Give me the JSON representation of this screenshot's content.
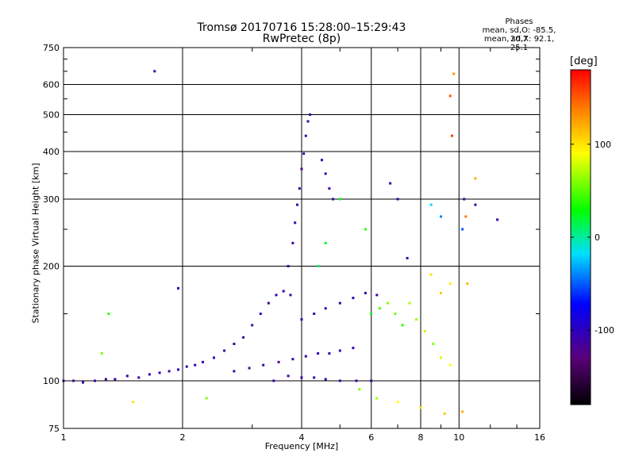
{
  "header": {
    "title": "Tromsø 20170716 15:28:00–15:29:43",
    "subtitle": "RwPretec (8p)",
    "stats_title": "Phases",
    "stats_o": "mean, sd,O: -85.5, 20.7",
    "stats_x": "mean, sd,X:  92.1, 25.1"
  },
  "axes": {
    "xlabel": "Frequency [MHz]",
    "ylabel": "Stationary phase Virtual Height [km]"
  },
  "colorbar": {
    "label": "[deg]",
    "range": [
      -180,
      180
    ],
    "ticks": [
      100,
      0,
      -100
    ],
    "tick_labels": [
      "100",
      "0",
      "-100"
    ]
  },
  "chart_data": {
    "type": "scatter",
    "title": "Tromsø 20170716 15:28:00–15:29:43",
    "subtitle": "RwPretec (8p)",
    "xlabel": "Frequency [MHz]",
    "ylabel": "Stationary phase Virtual Height [km]",
    "x_scale": "log",
    "y_scale": "log",
    "xlim": [
      1,
      16
    ],
    "ylim": [
      75,
      750
    ],
    "x_ticks": [
      1,
      2,
      4,
      6,
      8,
      10,
      16
    ],
    "x_tick_labels": [
      "1",
      "2",
      "4",
      "6",
      "8",
      "10",
      "16"
    ],
    "y_ticks": [
      75,
      100,
      200,
      300,
      400,
      500,
      600,
      750
    ],
    "y_tick_labels": [
      "75",
      "100",
      "200",
      "300",
      "400",
      "500",
      "600",
      "750"
    ],
    "grid": true,
    "color_variable": "phase [deg]",
    "points": [
      [
        1.0,
        100,
        -110
      ],
      [
        1.06,
        100,
        -115
      ],
      [
        1.12,
        99,
        -105
      ],
      [
        1.2,
        100,
        -110
      ],
      [
        1.28,
        101,
        -120
      ],
      [
        1.35,
        101,
        -108
      ],
      [
        1.45,
        103,
        -112
      ],
      [
        1.55,
        102,
        -118
      ],
      [
        1.65,
        104,
        -110
      ],
      [
        1.75,
        105,
        -106
      ],
      [
        1.85,
        106,
        -112
      ],
      [
        1.95,
        107,
        -100
      ],
      [
        2.05,
        109,
        -110
      ],
      [
        2.15,
        110,
        -104
      ],
      [
        2.25,
        112,
        -112
      ],
      [
        2.4,
        115,
        -100
      ],
      [
        2.55,
        120,
        -108
      ],
      [
        2.7,
        125,
        -110
      ],
      [
        2.85,
        130,
        -104
      ],
      [
        3.0,
        140,
        -110
      ],
      [
        3.15,
        150,
        -100
      ],
      [
        3.3,
        160,
        -112
      ],
      [
        3.45,
        168,
        -106
      ],
      [
        3.6,
        172,
        -110
      ],
      [
        3.75,
        168,
        -104
      ],
      [
        2.7,
        106,
        -110
      ],
      [
        2.95,
        108,
        -112
      ],
      [
        3.2,
        110,
        -105
      ],
      [
        3.5,
        112,
        -118
      ],
      [
        3.8,
        114,
        -108
      ],
      [
        4.1,
        116,
        -112
      ],
      [
        4.4,
        118,
        -100
      ],
      [
        4.7,
        118,
        -110
      ],
      [
        5.0,
        120,
        -104
      ],
      [
        5.4,
        122,
        -110
      ],
      [
        3.4,
        100,
        -110
      ],
      [
        3.7,
        103,
        -114
      ],
      [
        4.0,
        102,
        -108
      ],
      [
        4.3,
        102,
        -112
      ],
      [
        4.6,
        101,
        -104
      ],
      [
        5.0,
        100,
        -110
      ],
      [
        5.5,
        100,
        -112
      ],
      [
        6.0,
        100,
        -108
      ],
      [
        4.0,
        145,
        -104
      ],
      [
        4.3,
        150,
        -112
      ],
      [
        4.6,
        155,
        -106
      ],
      [
        5.0,
        160,
        -110
      ],
      [
        5.4,
        165,
        -104
      ],
      [
        5.8,
        170,
        -110
      ],
      [
        6.2,
        168,
        -112
      ],
      [
        3.7,
        200,
        -108
      ],
      [
        3.8,
        230,
        -112
      ],
      [
        3.85,
        260,
        -104
      ],
      [
        3.9,
        290,
        -110
      ],
      [
        3.95,
        320,
        -106
      ],
      [
        4.0,
        360,
        -112
      ],
      [
        4.05,
        395,
        -108
      ],
      [
        4.1,
        440,
        -114
      ],
      [
        4.15,
        480,
        -110
      ],
      [
        4.2,
        500,
        -104
      ],
      [
        4.5,
        380,
        -110
      ],
      [
        4.6,
        350,
        -106
      ],
      [
        4.7,
        320,
        -112
      ],
      [
        4.8,
        300,
        -108
      ],
      [
        6.7,
        330,
        -110
      ],
      [
        7.0,
        300,
        -106
      ],
      [
        7.4,
        210,
        -104
      ],
      [
        10.3,
        300,
        -110
      ],
      [
        11.0,
        290,
        -106
      ],
      [
        12.5,
        265,
        -110
      ],
      [
        6.0,
        150,
        30
      ],
      [
        6.3,
        155,
        45
      ],
      [
        6.6,
        160,
        60
      ],
      [
        6.9,
        150,
        55
      ],
      [
        7.2,
        140,
        40
      ],
      [
        7.5,
        160,
        70
      ],
      [
        7.8,
        145,
        65
      ],
      [
        8.2,
        135,
        75
      ],
      [
        8.6,
        125,
        60
      ],
      [
        9.0,
        115,
        80
      ],
      [
        9.5,
        110,
        90
      ],
      [
        5.6,
        95,
        60
      ],
      [
        6.2,
        90,
        70
      ],
      [
        7.0,
        88,
        90
      ],
      [
        8.0,
        85,
        100
      ],
      [
        9.2,
        82,
        110
      ],
      [
        10.2,
        83,
        120
      ],
      [
        8.5,
        190,
        100
      ],
      [
        9.0,
        170,
        110
      ],
      [
        9.5,
        180,
        95
      ],
      [
        10.5,
        180,
        115
      ],
      [
        11.0,
        340,
        120
      ],
      [
        10.4,
        270,
        140
      ],
      [
        9.6,
        440,
        160
      ],
      [
        9.5,
        560,
        150
      ],
      [
        9.7,
        640,
        130
      ],
      [
        4.4,
        200,
        10
      ],
      [
        4.6,
        230,
        20
      ],
      [
        5.0,
        300,
        30
      ],
      [
        5.8,
        250,
        40
      ],
      [
        8.5,
        290,
        -20
      ],
      [
        9.0,
        270,
        -40
      ],
      [
        10.2,
        250,
        -50
      ],
      [
        1.7,
        650,
        -110
      ],
      [
        1.95,
        175,
        -105
      ],
      [
        1.3,
        150,
        40
      ],
      [
        1.25,
        118,
        60
      ],
      [
        1.5,
        88,
        100
      ],
      [
        2.3,
        90,
        60
      ]
    ]
  }
}
